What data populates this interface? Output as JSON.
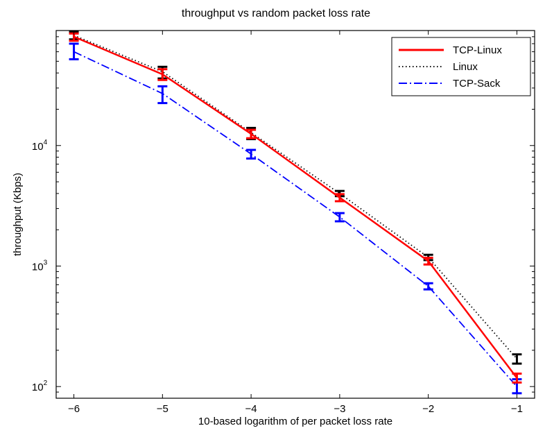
{
  "chart_data": {
    "type": "line",
    "title": "throughput vs random packet loss rate",
    "xlabel": "10-based logarithm of per packet loss rate",
    "ylabel": "throughput (Kbps)",
    "x": [
      -6,
      -5,
      -4,
      -3,
      -2,
      -1
    ],
    "xlim": [
      -6.2,
      -0.8
    ],
    "ylim": [
      80,
      90000
    ],
    "y_scale": "log",
    "x_ticks": [
      -6,
      -5,
      -4,
      -3,
      -2,
      -1
    ],
    "x_tick_labels": [
      "−6",
      "−5",
      "−4",
      "−3",
      "−2",
      "−1"
    ],
    "y_ticks": [
      {
        "value": 10000,
        "base": "10",
        "exp": "4"
      },
      {
        "value": 1000,
        "base": "10",
        "exp": "3"
      },
      {
        "value": 100,
        "base": "10",
        "exp": "2"
      }
    ],
    "grid": false,
    "legend_position": "top-right",
    "series": [
      {
        "name": "TCP-Linux",
        "color": "#ff0000",
        "style": "solid",
        "values": [
          80000,
          39000,
          12500,
          3700,
          1100,
          118
        ],
        "error_low": [
          74000,
          35000,
          11500,
          3450,
          1030,
          108
        ],
        "error_high": [
          85000,
          43000,
          13500,
          3950,
          1170,
          128
        ]
      },
      {
        "name": "Linux",
        "color": "#000000",
        "style": "dotted",
        "values": [
          82000,
          41000,
          12800,
          4000,
          1180,
          170
        ],
        "error_low": [
          76000,
          36000,
          11300,
          3800,
          1120,
          155
        ],
        "error_high": [
          88000,
          45000,
          14000,
          4200,
          1240,
          185
        ]
      },
      {
        "name": "TCP-Sack",
        "color": "#0000ff",
        "style": "dashdot",
        "values": [
          60000,
          27000,
          8500,
          2550,
          680,
          100
        ],
        "error_low": [
          52000,
          22500,
          7800,
          2350,
          640,
          88
        ],
        "error_high": [
          70000,
          31000,
          9200,
          2750,
          720,
          115
        ]
      }
    ]
  }
}
